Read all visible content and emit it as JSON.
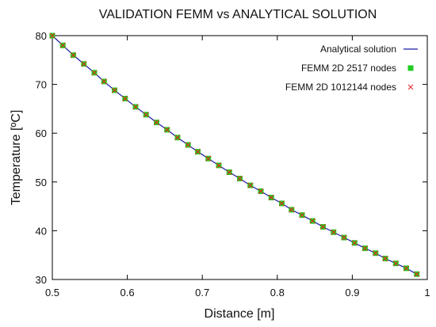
{
  "chart_data": {
    "type": "line",
    "title": "VALIDATION FEMM vs ANALYTICAL SOLUTION",
    "xlabel": "Distance [m]",
    "ylabel": "Temperature [ºC]",
    "xlim": [
      0.5,
      1
    ],
    "ylim": [
      30,
      80
    ],
    "x_ticks": [
      "0.5",
      "0.6",
      "0.7",
      "0.8",
      "0.9",
      "1"
    ],
    "y_ticks": [
      "30",
      "40",
      "50",
      "60",
      "70",
      "80"
    ],
    "grid": false,
    "legend_position": "top-right",
    "legend": [
      {
        "label": "Analytical solution",
        "color": "#1a1aa6",
        "marker": "line"
      },
      {
        "label": "FEMM 2D 2517 nodes",
        "color": "#22cc22",
        "marker": "square"
      },
      {
        "label": "FEMM 2D 1012144 nodes",
        "color": "#ee2222",
        "marker": "cross"
      }
    ],
    "x": [
      0.5,
      0.514,
      0.528,
      0.542,
      0.556,
      0.569,
      0.583,
      0.597,
      0.611,
      0.625,
      0.639,
      0.653,
      0.667,
      0.681,
      0.694,
      0.708,
      0.722,
      0.736,
      0.75,
      0.764,
      0.778,
      0.792,
      0.806,
      0.819,
      0.833,
      0.847,
      0.861,
      0.875,
      0.889,
      0.903,
      0.917,
      0.931,
      0.944,
      0.958,
      0.972,
      0.986
    ],
    "series": [
      {
        "name": "Analytical solution",
        "values": [
          80.0,
          78.0,
          76.0,
          74.2,
          72.4,
          70.6,
          68.8,
          67.1,
          65.4,
          63.8,
          62.2,
          60.7,
          59.1,
          57.6,
          56.2,
          54.8,
          53.4,
          52.0,
          50.7,
          49.3,
          48.1,
          46.8,
          45.6,
          44.3,
          43.2,
          42.0,
          40.8,
          39.7,
          38.6,
          37.5,
          36.4,
          35.4,
          34.3,
          33.3,
          32.3,
          31.1
        ]
      },
      {
        "name": "FEMM 2D 2517 nodes",
        "values": [
          80.0,
          78.0,
          76.0,
          74.2,
          72.4,
          70.6,
          68.8,
          67.1,
          65.4,
          63.8,
          62.2,
          60.7,
          59.1,
          57.6,
          56.2,
          54.8,
          53.4,
          52.0,
          50.7,
          49.3,
          48.1,
          46.8,
          45.6,
          44.3,
          43.2,
          42.0,
          40.8,
          39.7,
          38.6,
          37.5,
          36.4,
          35.4,
          34.3,
          33.3,
          32.3,
          31.1
        ]
      },
      {
        "name": "FEMM 2D 1012144 nodes",
        "values": [
          80.0,
          78.0,
          76.0,
          74.2,
          72.4,
          70.6,
          68.8,
          67.1,
          65.4,
          63.8,
          62.2,
          60.7,
          59.1,
          57.6,
          56.2,
          54.8,
          53.4,
          52.0,
          50.7,
          49.3,
          48.1,
          46.8,
          45.6,
          44.3,
          43.2,
          42.0,
          40.8,
          39.7,
          38.6,
          37.5,
          36.4,
          35.4,
          34.3,
          33.3,
          32.3,
          31.1
        ]
      }
    ]
  }
}
